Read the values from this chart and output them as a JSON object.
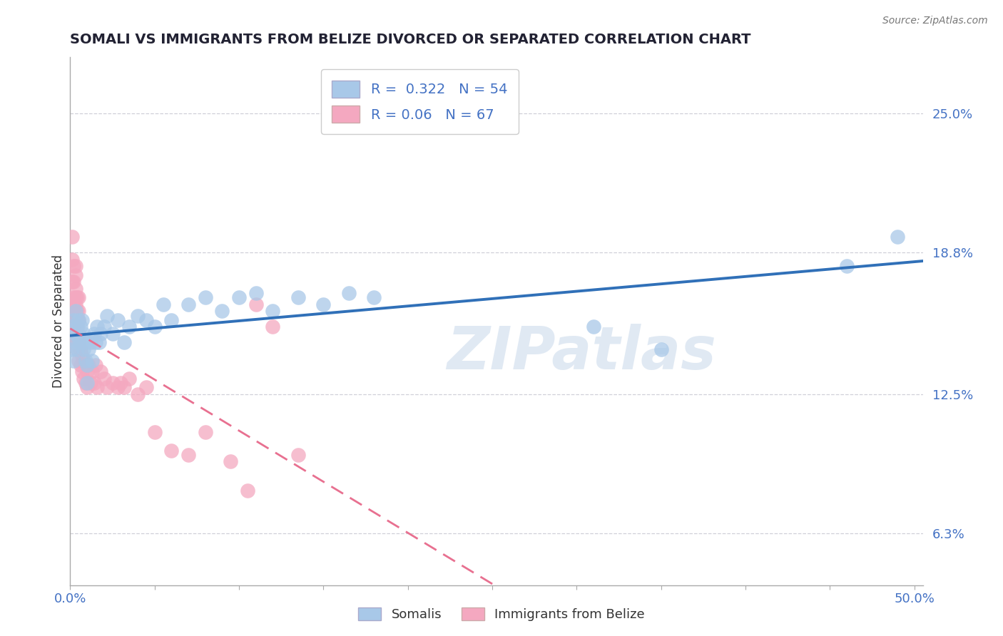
{
  "title": "SOMALI VS IMMIGRANTS FROM BELIZE DIVORCED OR SEPARATED CORRELATION CHART",
  "source": "Source: ZipAtlas.com",
  "ylabel": "Divorced or Separated",
  "label_somali": "Somalis",
  "label_belize": "Immigrants from Belize",
  "xlim": [
    0.0,
    0.505
  ],
  "ylim": [
    0.04,
    0.275
  ],
  "yticks": [
    0.063,
    0.125,
    0.188,
    0.25
  ],
  "ytick_labels": [
    "6.3%",
    "12.5%",
    "18.8%",
    "25.0%"
  ],
  "somali_R": 0.322,
  "somali_N": 54,
  "belize_R": 0.06,
  "belize_N": 67,
  "somali_color": "#a8c8e8",
  "belize_color": "#f4a8c0",
  "trend_somali_color": "#3070b8",
  "trend_belize_color": "#e87090",
  "watermark_text": "ZIPatlas",
  "somali_x": [
    0.001,
    0.001,
    0.002,
    0.002,
    0.003,
    0.003,
    0.003,
    0.004,
    0.004,
    0.005,
    0.005,
    0.006,
    0.006,
    0.007,
    0.007,
    0.008,
    0.008,
    0.009,
    0.009,
    0.01,
    0.01,
    0.011,
    0.012,
    0.013,
    0.014,
    0.015,
    0.016,
    0.017,
    0.018,
    0.02,
    0.022,
    0.025,
    0.028,
    0.032,
    0.035,
    0.04,
    0.045,
    0.05,
    0.055,
    0.06,
    0.07,
    0.08,
    0.09,
    0.1,
    0.11,
    0.12,
    0.135,
    0.15,
    0.165,
    0.18,
    0.31,
    0.35,
    0.46,
    0.49
  ],
  "somali_y": [
    0.145,
    0.155,
    0.14,
    0.158,
    0.148,
    0.152,
    0.162,
    0.145,
    0.155,
    0.15,
    0.158,
    0.148,
    0.155,
    0.148,
    0.158,
    0.145,
    0.152,
    0.14,
    0.148,
    0.13,
    0.138,
    0.145,
    0.148,
    0.14,
    0.152,
    0.148,
    0.155,
    0.148,
    0.152,
    0.155,
    0.16,
    0.152,
    0.158,
    0.148,
    0.155,
    0.16,
    0.158,
    0.155,
    0.165,
    0.158,
    0.165,
    0.168,
    0.162,
    0.168,
    0.17,
    0.162,
    0.168,
    0.165,
    0.17,
    0.168,
    0.155,
    0.145,
    0.182,
    0.195
  ],
  "belize_x": [
    0.001,
    0.001,
    0.001,
    0.001,
    0.001,
    0.002,
    0.002,
    0.002,
    0.002,
    0.002,
    0.002,
    0.003,
    0.003,
    0.003,
    0.003,
    0.003,
    0.003,
    0.003,
    0.003,
    0.003,
    0.003,
    0.004,
    0.004,
    0.004,
    0.004,
    0.004,
    0.004,
    0.005,
    0.005,
    0.005,
    0.005,
    0.005,
    0.005,
    0.006,
    0.006,
    0.007,
    0.007,
    0.008,
    0.008,
    0.009,
    0.01,
    0.01,
    0.011,
    0.012,
    0.013,
    0.014,
    0.015,
    0.016,
    0.018,
    0.02,
    0.022,
    0.025,
    0.028,
    0.03,
    0.032,
    0.035,
    0.04,
    0.045,
    0.05,
    0.06,
    0.07,
    0.08,
    0.095,
    0.105,
    0.11,
    0.12,
    0.135
  ],
  "belize_y": [
    0.158,
    0.165,
    0.175,
    0.185,
    0.195,
    0.148,
    0.155,
    0.162,
    0.168,
    0.175,
    0.182,
    0.148,
    0.155,
    0.158,
    0.162,
    0.168,
    0.172,
    0.178,
    0.182,
    0.158,
    0.165,
    0.145,
    0.15,
    0.155,
    0.158,
    0.162,
    0.168,
    0.14,
    0.148,
    0.152,
    0.158,
    0.162,
    0.168,
    0.138,
    0.145,
    0.135,
    0.142,
    0.132,
    0.14,
    0.13,
    0.128,
    0.135,
    0.138,
    0.13,
    0.135,
    0.13,
    0.138,
    0.128,
    0.135,
    0.132,
    0.128,
    0.13,
    0.128,
    0.13,
    0.128,
    0.132,
    0.125,
    0.128,
    0.108,
    0.1,
    0.098,
    0.108,
    0.095,
    0.082,
    0.165,
    0.155,
    0.098
  ]
}
